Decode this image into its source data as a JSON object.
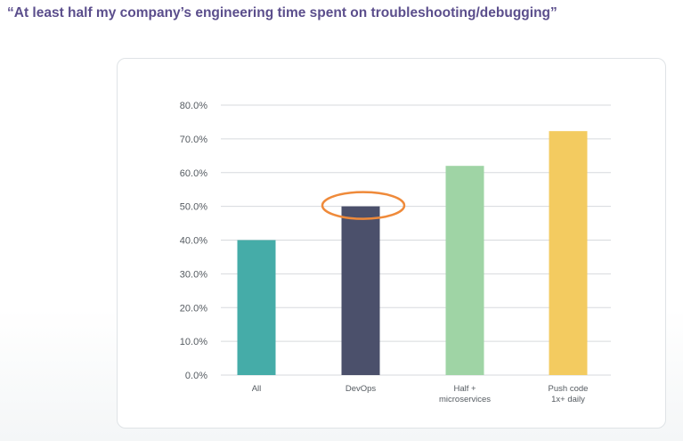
{
  "header": {
    "title": "“At least half my company’s engineering time spent on troubleshooting/debugging”"
  },
  "chart_data": {
    "type": "bar",
    "title": "“At least half my company’s engineering time spent on troubleshooting/debugging”",
    "xlabel": "",
    "ylabel": "",
    "ylim": [
      0,
      80
    ],
    "yticks": [
      0,
      10,
      20,
      30,
      40,
      50,
      60,
      70,
      80
    ],
    "ytick_labels": [
      "0.0%",
      "10.0%",
      "20.0%",
      "30.0%",
      "40.0%",
      "50.0%",
      "60.0%",
      "70.0%",
      "80.0%"
    ],
    "categories": [
      [
        "All"
      ],
      [
        "DevOps"
      ],
      [
        "Half +",
        "microservices"
      ],
      [
        "Push code",
        "1x+ daily"
      ]
    ],
    "values": [
      40,
      50,
      62,
      72.3
    ],
    "colors": [
      "#45aca8",
      "#4b506b",
      "#9fd4a5",
      "#f3cb60"
    ],
    "grid": true,
    "legend": "none",
    "annotation": {
      "type": "ellipse",
      "target_category_index": 1,
      "color": "#ef8a3a"
    }
  }
}
